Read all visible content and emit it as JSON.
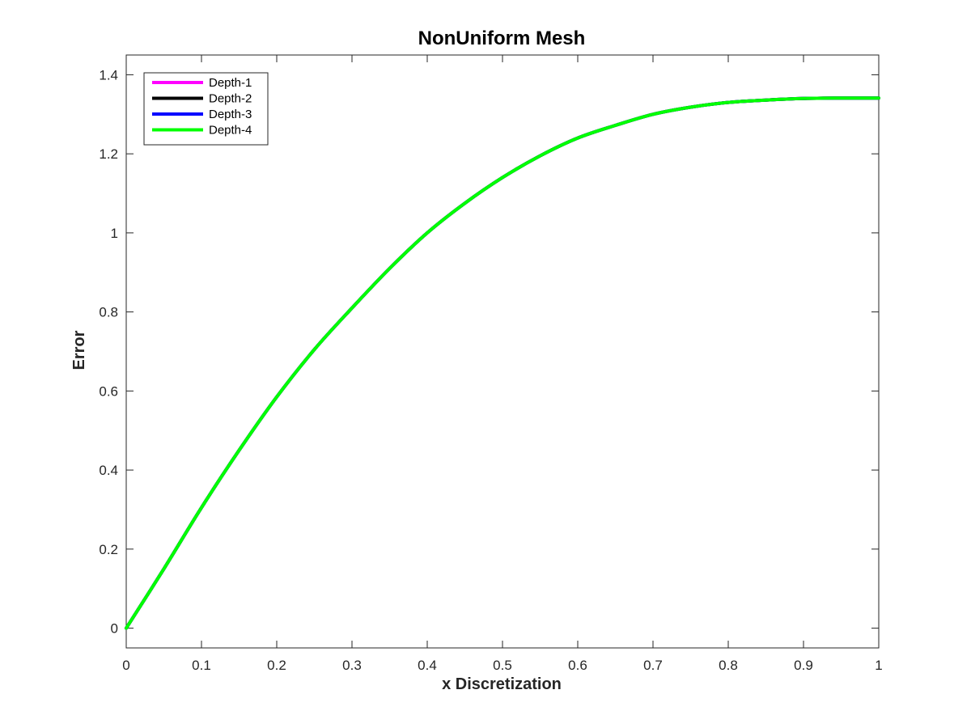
{
  "chart_data": {
    "type": "line",
    "title": "NonUniform Mesh",
    "xlabel": "x Discretization",
    "ylabel": "Error",
    "xlim": [
      0,
      1
    ],
    "ylim": [
      -0.05,
      1.45
    ],
    "xticks": [
      0,
      0.1,
      0.2,
      0.3,
      0.4,
      0.5,
      0.6,
      0.7,
      0.8,
      0.9,
      1
    ],
    "xtick_labels": [
      "0",
      "0.1",
      "0.2",
      "0.3",
      "0.4",
      "0.5",
      "0.6",
      "0.7",
      "0.8",
      "0.9",
      "1"
    ],
    "yticks": [
      0,
      0.2,
      0.4,
      0.6,
      0.8,
      1.0,
      1.2,
      1.4
    ],
    "ytick_labels": [
      "0",
      "0.2",
      "0.4",
      "0.6",
      "0.8",
      "1",
      "1.2",
      "1.4"
    ],
    "grid": false,
    "legend_position": "top-left",
    "x": [
      0,
      0.05,
      0.1,
      0.15,
      0.2,
      0.25,
      0.3,
      0.35,
      0.4,
      0.45,
      0.5,
      0.55,
      0.6,
      0.65,
      0.7,
      0.75,
      0.8,
      0.85,
      0.9,
      0.95,
      1.0
    ],
    "series": [
      {
        "name": "Depth-1",
        "color": "#ff00ff",
        "values": [
          0,
          0.15,
          0.305,
          0.45,
          0.585,
          0.705,
          0.81,
          0.91,
          1.0,
          1.075,
          1.14,
          1.195,
          1.24,
          1.272,
          1.3,
          1.318,
          1.33,
          1.336,
          1.34,
          1.341,
          1.341
        ]
      },
      {
        "name": "Depth-2",
        "color": "#000000",
        "values": [
          0,
          0.15,
          0.305,
          0.45,
          0.585,
          0.705,
          0.81,
          0.91,
          1.0,
          1.075,
          1.14,
          1.195,
          1.24,
          1.272,
          1.3,
          1.318,
          1.33,
          1.336,
          1.34,
          1.341,
          1.341
        ]
      },
      {
        "name": "Depth-3",
        "color": "#0000ff",
        "values": [
          0,
          0.15,
          0.305,
          0.45,
          0.585,
          0.705,
          0.81,
          0.91,
          1.0,
          1.075,
          1.14,
          1.195,
          1.24,
          1.272,
          1.3,
          1.318,
          1.33,
          1.336,
          1.34,
          1.341,
          1.341
        ]
      },
      {
        "name": "Depth-4",
        "color": "#00ff00",
        "values": [
          0,
          0.15,
          0.305,
          0.45,
          0.585,
          0.705,
          0.81,
          0.91,
          1.0,
          1.075,
          1.14,
          1.195,
          1.24,
          1.272,
          1.3,
          1.318,
          1.33,
          1.336,
          1.34,
          1.341,
          1.341
        ]
      }
    ]
  }
}
